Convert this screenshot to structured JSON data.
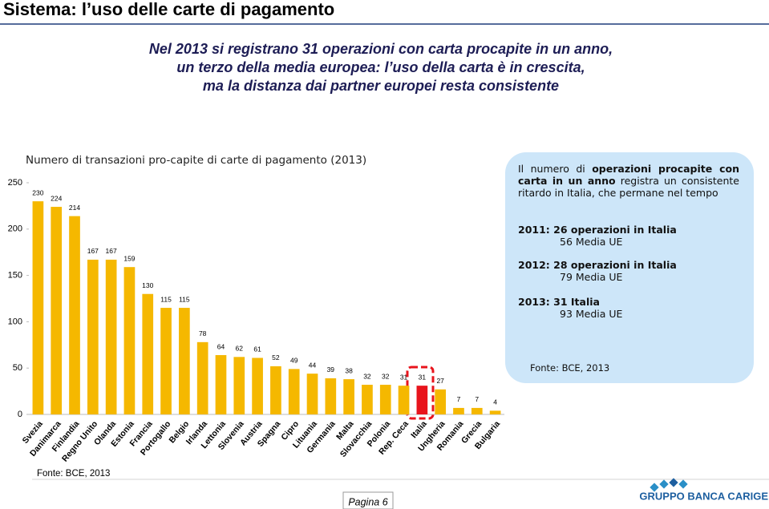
{
  "header": {
    "title": "Sistema: l’uso delle carte di pagamento",
    "subtitle": [
      "Nel 2013 si registrano 31 operazioni con carta procapite in un anno,",
      "un terzo della media europea: l’uso della carta è in crescita,",
      "ma la distanza dai partner europei resta consistente"
    ]
  },
  "chart_data": {
    "type": "bar",
    "title": "Numero di transazioni pro-capite di carte di pagamento (2013)",
    "categories": [
      "Svezia",
      "Danimarca",
      "Finlandia",
      "Regno Unito",
      "Olanda",
      "Estonia",
      "Francia",
      "Portogallo",
      "Belgio",
      "Irlanda",
      "Lettonia",
      "Slovenia",
      "Austria",
      "Spagna",
      "Cipro",
      "Lituania",
      "Germania",
      "Malta",
      "Slovacchia",
      "Polonia",
      "Rep. Ceca",
      "Italia",
      "Ungheria",
      "Romania",
      "Grecia",
      "Bulgaria"
    ],
    "values": [
      230,
      224,
      214,
      167,
      167,
      159,
      130,
      115,
      115,
      78,
      64,
      62,
      61,
      52,
      49,
      44,
      39,
      38,
      32,
      32,
      31,
      31,
      27,
      7,
      7,
      4
    ],
    "colors": [
      "#f5b800",
      "#f5b800",
      "#f5b800",
      "#f5b800",
      "#f5b800",
      "#f5b800",
      "#f5b800",
      "#f5b800",
      "#f5b800",
      "#f5b800",
      "#f5b800",
      "#f5b800",
      "#f5b800",
      "#f5b800",
      "#f5b800",
      "#f5b800",
      "#f5b800",
      "#f5b800",
      "#f5b800",
      "#f5b800",
      "#f5b800",
      "#e8141c",
      "#f5b800",
      "#f5b800",
      "#f5b800",
      "#f5b800"
    ],
    "ylim": [
      0,
      250
    ],
    "yticks": [
      0,
      50,
      100,
      150,
      200,
      250
    ],
    "grid": false
  },
  "info_box": {
    "intro": [
      "Il numero di ",
      "operazioni procapite con carta in un anno",
      " registra un consistente ritardo in Italia, che permane nel tempo"
    ],
    "items": [
      {
        "bold": "2011: 26 operazioni in Italia",
        "normal": "56  Media UE"
      },
      {
        "bold": "2012: 28 operazioni in Italia",
        "normal": "79  Media UE"
      },
      {
        "bold": "2013: 31 Italia",
        "normal": "93 Media UE"
      }
    ],
    "source": "Fonte: BCE, 2013"
  },
  "footer": {
    "source": "Fonte: BCE, 2013",
    "page": "Pagina 6",
    "logo": "GRUPPO BANCA CARIGE"
  }
}
